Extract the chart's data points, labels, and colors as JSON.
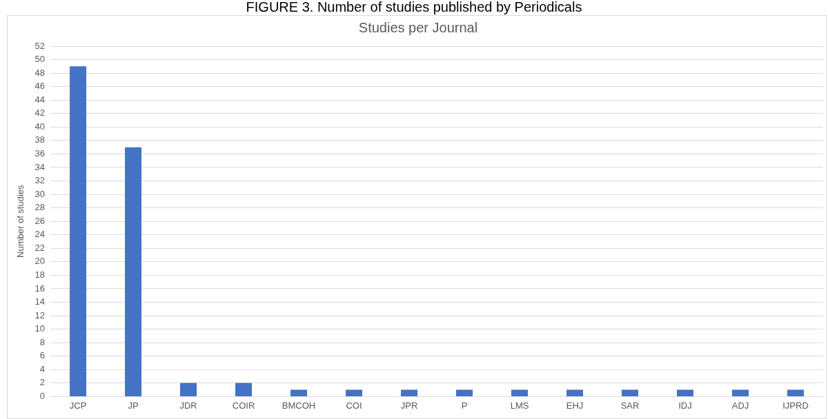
{
  "chart_data": {
    "type": "bar",
    "title": "FIGURE 3. Number of studies published by Periodicals",
    "subtitle": "Studies per Journal",
    "ylabel": "Number of studies",
    "categories": [
      "JCP",
      "JP",
      "JDR",
      "COIR",
      "BMCOH",
      "COI",
      "JPR",
      "P",
      "LMS",
      "EHJ",
      "SAR",
      "IDJ",
      "ADJ",
      "IJPRD"
    ],
    "values": [
      49,
      37,
      2,
      2,
      1,
      1,
      1,
      1,
      1,
      1,
      1,
      1,
      1,
      1
    ],
    "color": "#4472c4",
    "ylim": [
      0,
      52
    ],
    "yticks": [
      0,
      2,
      4,
      6,
      8,
      10,
      12,
      14,
      16,
      18,
      20,
      22,
      24,
      26,
      28,
      30,
      32,
      34,
      36,
      38,
      40,
      42,
      44,
      46,
      48,
      50,
      52
    ],
    "grid": "y",
    "legend": false
  }
}
